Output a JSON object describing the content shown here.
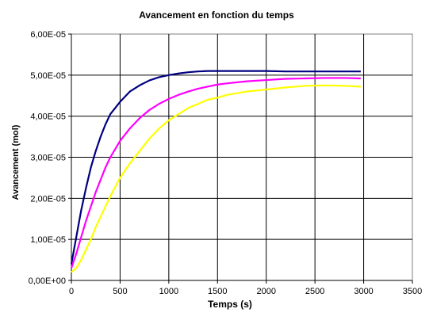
{
  "chart_data": {
    "type": "line",
    "title": "Avancement en fonction du temps",
    "xlabel": "Temps (s)",
    "ylabel": "Avancement (mol)",
    "xlim": [
      0,
      3500
    ],
    "ylim": [
      0,
      6e-05
    ],
    "x_ticks": [
      "0",
      "500",
      "1000",
      "1500",
      "2000",
      "2500",
      "3000",
      "3500"
    ],
    "y_ticks": [
      "0,00E+00",
      "1,00E-05",
      "2,00E-05",
      "3,00E-05",
      "4,00E-05",
      "5,00E-05",
      "6,00E-05"
    ],
    "grid": true,
    "legend": "none",
    "x": [
      0,
      50,
      100,
      150,
      200,
      250,
      300,
      350,
      400,
      500,
      600,
      700,
      800,
      900,
      1000,
      1100,
      1200,
      1300,
      1400,
      1500,
      1600,
      1800,
      2000,
      2200,
      2400,
      2600,
      2800,
      2970
    ],
    "series": [
      {
        "color": "#000080",
        "values": [
          4e-06,
          1.05e-05,
          1.7e-05,
          2.25e-05,
          2.75e-05,
          3.15e-05,
          3.5e-05,
          3.8e-05,
          4.05e-05,
          4.35e-05,
          4.6e-05,
          4.75e-05,
          4.87e-05,
          4.95e-05,
          5e-05,
          5.04e-05,
          5.07e-05,
          5.09e-05,
          5.1e-05,
          5.1e-05,
          5.1e-05,
          5.1e-05,
          5.1e-05,
          5.09e-05,
          5.09e-05,
          5.09e-05,
          5.09e-05,
          5.09e-05
        ]
      },
      {
        "color": "#FF00FF",
        "values": [
          3e-06,
          6.5e-06,
          1.05e-05,
          1.45e-05,
          1.8e-05,
          2.15e-05,
          2.45e-05,
          2.75e-05,
          3e-05,
          3.4e-05,
          3.7e-05,
          3.95e-05,
          4.15e-05,
          4.3e-05,
          4.42e-05,
          4.52e-05,
          4.6e-05,
          4.67e-05,
          4.72e-05,
          4.77e-05,
          4.8e-05,
          4.85e-05,
          4.88e-05,
          4.91e-05,
          4.92e-05,
          4.93e-05,
          4.93e-05,
          4.92e-05
        ]
      },
      {
        "color": "#FFFF00",
        "values": [
          2e-06,
          3e-06,
          5e-06,
          7.5e-06,
          1e-05,
          1.3e-05,
          1.55e-05,
          1.8e-05,
          2.05e-05,
          2.5e-05,
          2.85e-05,
          3.15e-05,
          3.45e-05,
          3.7e-05,
          3.9e-05,
          4.05e-05,
          4.2e-05,
          4.3e-05,
          4.4e-05,
          4.45e-05,
          4.52e-05,
          4.6e-05,
          4.65e-05,
          4.7e-05,
          4.74e-05,
          4.75e-05,
          4.74e-05,
          4.72e-05
        ]
      }
    ]
  }
}
